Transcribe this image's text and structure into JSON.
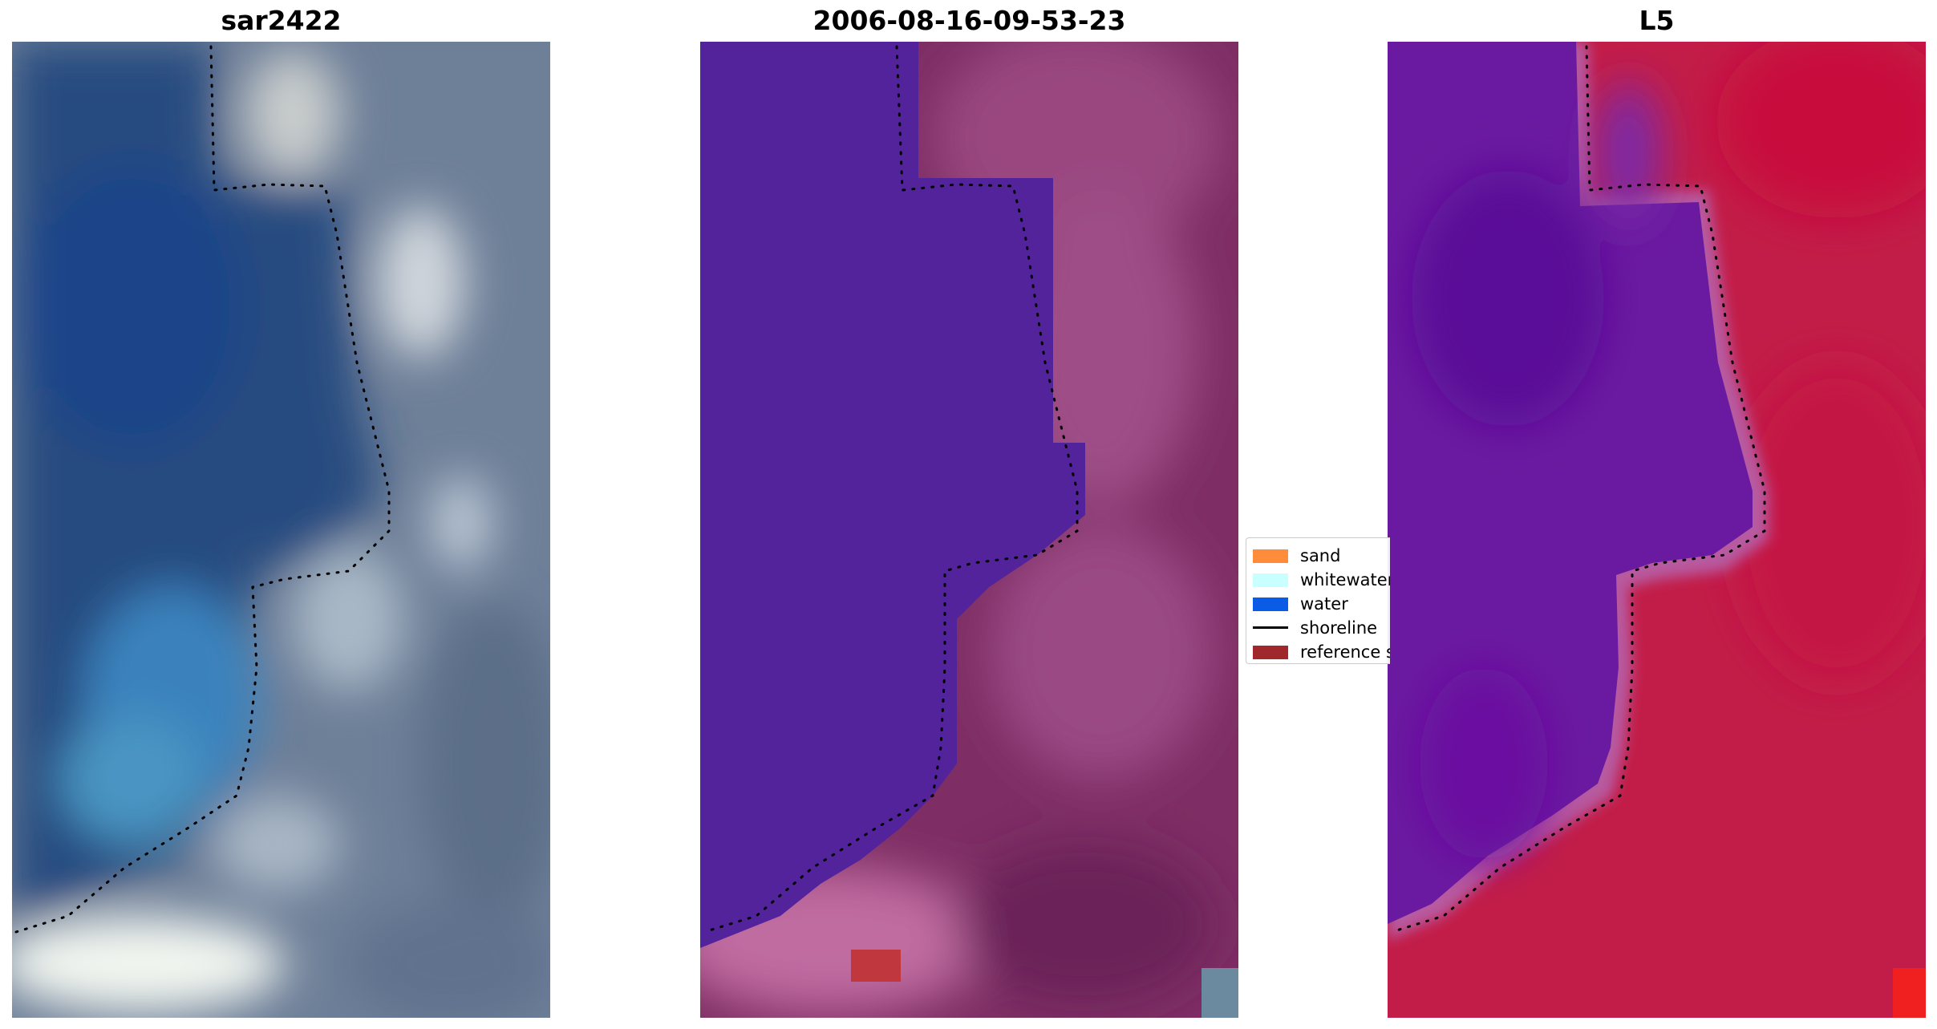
{
  "panels": [
    {
      "title": "sar2422"
    },
    {
      "title": "2006-08-16-09-53-23"
    },
    {
      "title": "L5"
    }
  ],
  "legend": {
    "items": [
      {
        "label": "sand",
        "kind": "patch",
        "color": "#ff8c3a"
      },
      {
        "label": "whitewater",
        "kind": "patch",
        "color": "#c8ffff"
      },
      {
        "label": "water",
        "kind": "patch",
        "color": "#0a5be6"
      },
      {
        "label": "shoreline",
        "kind": "line",
        "color": "#000000"
      },
      {
        "label": "reference shoreline",
        "kind": "patch",
        "color": "#a0282c"
      }
    ]
  },
  "colors": {
    "sar_water": "#2a4f82",
    "sar_land": "#7f8fa6",
    "sar_bright": "#e8eee8",
    "class_water": "#53239b",
    "class_land": "#8a3a70",
    "class_light": "#c86aa2",
    "class_ref_patch": "#c0383e",
    "l5_water": "#6a1aa0",
    "l5_land": "#c21d48",
    "l5_edge": "#b85aa0"
  }
}
